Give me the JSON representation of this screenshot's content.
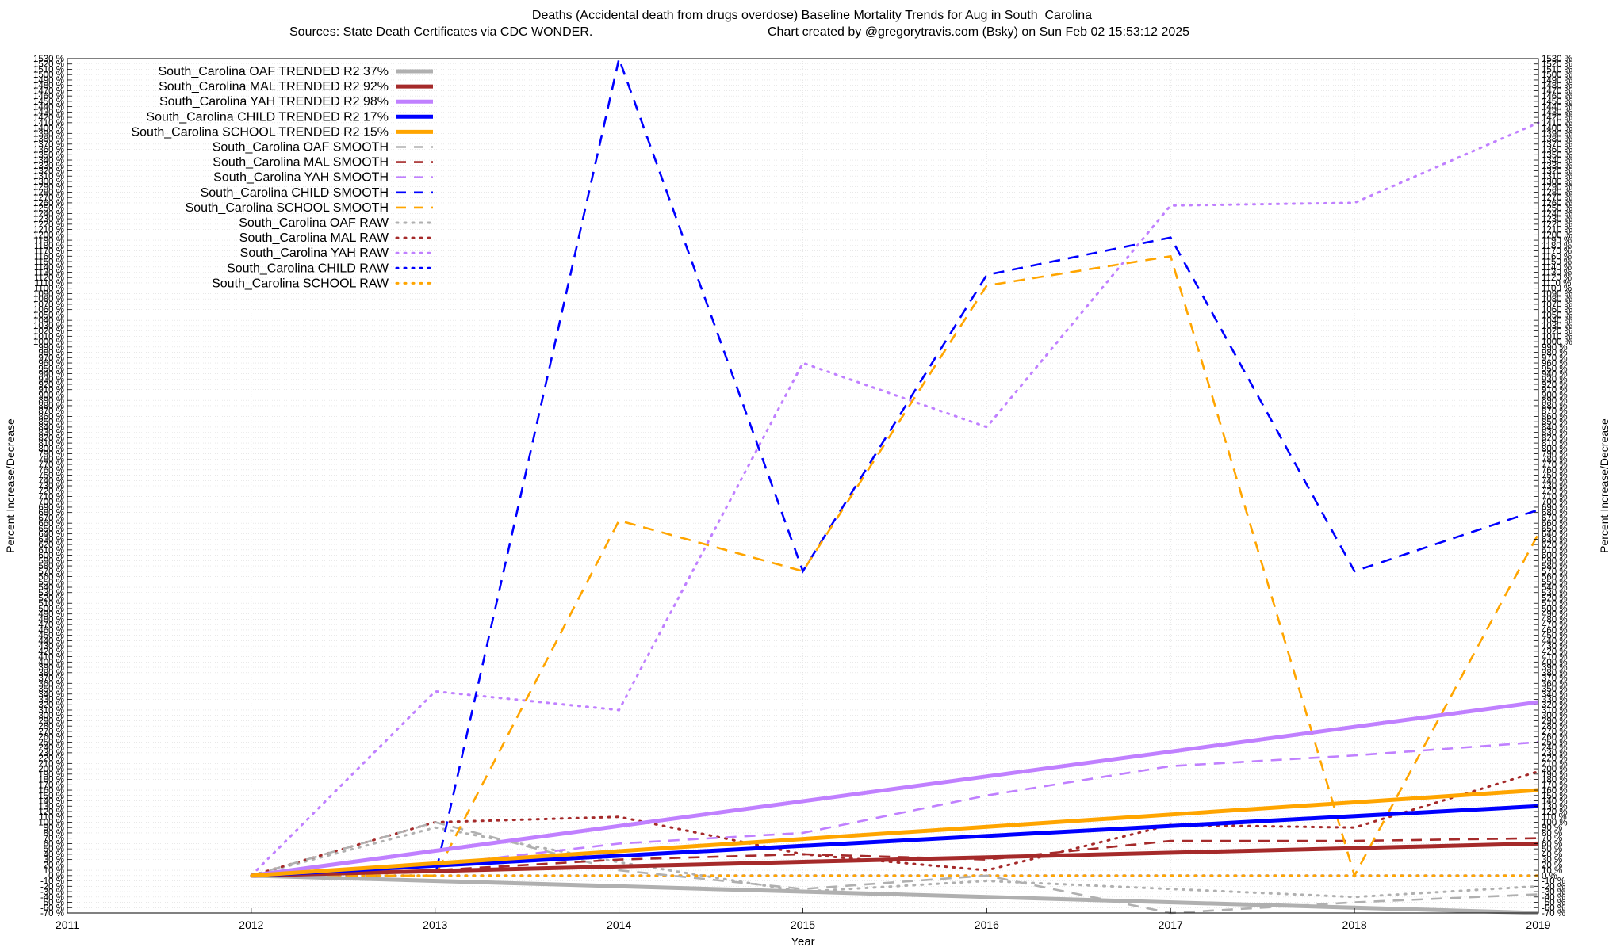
{
  "title": "Deaths (Accidental death from drugs overdose)  Baseline Mortality Trends for Aug in South_Carolina",
  "subtitle_left": "Sources: State Death Certificates via CDC WONDER.",
  "subtitle_right": "Chart created by @gregorytravis.com (Bsky) on Sun Feb 02 15:53:12 2025",
  "chart_data": {
    "type": "line",
    "title": "Deaths (Accidental death from drugs overdose)  Baseline Mortality Trends for Aug in South_Carolina",
    "xlabel": "Year",
    "ylabel": "Percent Increase/Decrease",
    "ylabel_right": "Percent Increase/Decrease",
    "xlim": [
      2011,
      2019
    ],
    "ylim": [
      -70,
      1530
    ],
    "x_ticks": [
      2011,
      2012,
      2013,
      2014,
      2015,
      2016,
      2017,
      2018,
      2019
    ],
    "y_tick_step": 10,
    "y_tick_suffix": " %",
    "grid": true,
    "legend_position": "top-left",
    "series": [
      {
        "name": "South_Carolina OAF TRENDED R2  37%",
        "color": "#b0b0b0",
        "style": "solid",
        "x": [
          2012,
          2019
        ],
        "y": [
          0,
          -70
        ]
      },
      {
        "name": "South_Carolina MAL TRENDED R2  92%",
        "color": "#a52a2a",
        "style": "solid",
        "x": [
          2012,
          2019
        ],
        "y": [
          0,
          60
        ]
      },
      {
        "name": "South_Carolina YAH TRENDED R2  98%",
        "color": "#c080ff",
        "style": "solid",
        "x": [
          2012,
          2019
        ],
        "y": [
          0,
          325
        ]
      },
      {
        "name": "South_Carolina CHILD TRENDED R2  17%",
        "color": "#0000ff",
        "style": "solid",
        "x": [
          2012,
          2019
        ],
        "y": [
          0,
          130
        ]
      },
      {
        "name": "South_Carolina SCHOOL TRENDED R2  15%",
        "color": "#ffa500",
        "style": "solid",
        "x": [
          2012,
          2019
        ],
        "y": [
          0,
          160
        ]
      },
      {
        "name": "South_Carolina OAF SMOOTH",
        "color": "#b0b0b0",
        "style": "dashed",
        "x": [
          2012,
          2013,
          2014,
          2015,
          2016,
          2017,
          2018,
          2019
        ],
        "y": [
          0,
          100,
          10,
          -25,
          0,
          -70,
          -50,
          -35
        ]
      },
      {
        "name": "South_Carolina MAL SMOOTH",
        "color": "#a52a2a",
        "style": "dashed",
        "x": [
          2012,
          2013,
          2014,
          2015,
          2016,
          2017,
          2018,
          2019
        ],
        "y": [
          0,
          10,
          30,
          40,
          30,
          65,
          65,
          70
        ]
      },
      {
        "name": "South_Carolina YAH SMOOTH",
        "color": "#c080ff",
        "style": "dashed",
        "x": [
          2012,
          2013,
          2014,
          2015,
          2016,
          2017,
          2018,
          2019
        ],
        "y": [
          0,
          20,
          60,
          80,
          150,
          205,
          225,
          250
        ]
      },
      {
        "name": "South_Carolina CHILD SMOOTH",
        "color": "#0000ff",
        "style": "dashed",
        "x": [
          2012,
          2013,
          2014,
          2015,
          2016,
          2017,
          2018,
          2019
        ],
        "y": [
          0,
          0,
          1530,
          570,
          1125,
          1195,
          570,
          685
        ]
      },
      {
        "name": "South_Carolina SCHOOL SMOOTH",
        "color": "#ffa500",
        "style": "dashed",
        "x": [
          2012,
          2013,
          2014,
          2015,
          2016,
          2017,
          2018,
          2019
        ],
        "y": [
          0,
          0,
          665,
          570,
          1105,
          1160,
          0,
          640
        ]
      },
      {
        "name": "South_Carolina OAF RAW",
        "color": "#b0b0b0",
        "style": "dotted",
        "x": [
          2012,
          2013,
          2014,
          2015,
          2016,
          2017,
          2018,
          2019
        ],
        "y": [
          0,
          90,
          25,
          -30,
          -10,
          -25,
          -40,
          -20
        ]
      },
      {
        "name": "South_Carolina MAL RAW",
        "color": "#a52a2a",
        "style": "dotted",
        "x": [
          2012,
          2013,
          2014,
          2015,
          2016,
          2017,
          2018,
          2019
        ],
        "y": [
          0,
          100,
          110,
          40,
          10,
          95,
          90,
          195
        ]
      },
      {
        "name": "South_Carolina YAH RAW",
        "color": "#c080ff",
        "style": "dotted",
        "x": [
          2012,
          2013,
          2014,
          2015,
          2016,
          2017,
          2018,
          2019
        ],
        "y": [
          0,
          345,
          310,
          960,
          840,
          1255,
          1260,
          1410
        ]
      },
      {
        "name": "South_Carolina CHILD RAW",
        "color": "#0000ff",
        "style": "dotted",
        "x": [
          2012,
          2013,
          2014,
          2015,
          2016,
          2017,
          2018,
          2019
        ],
        "y": [
          0,
          0,
          0,
          0,
          0,
          0,
          0,
          0
        ]
      },
      {
        "name": "South_Carolina SCHOOL RAW",
        "color": "#ffa500",
        "style": "dotted",
        "x": [
          2012,
          2013,
          2014,
          2015,
          2016,
          2017,
          2018,
          2019
        ],
        "y": [
          0,
          0,
          0,
          0,
          0,
          0,
          0,
          0
        ]
      }
    ]
  }
}
